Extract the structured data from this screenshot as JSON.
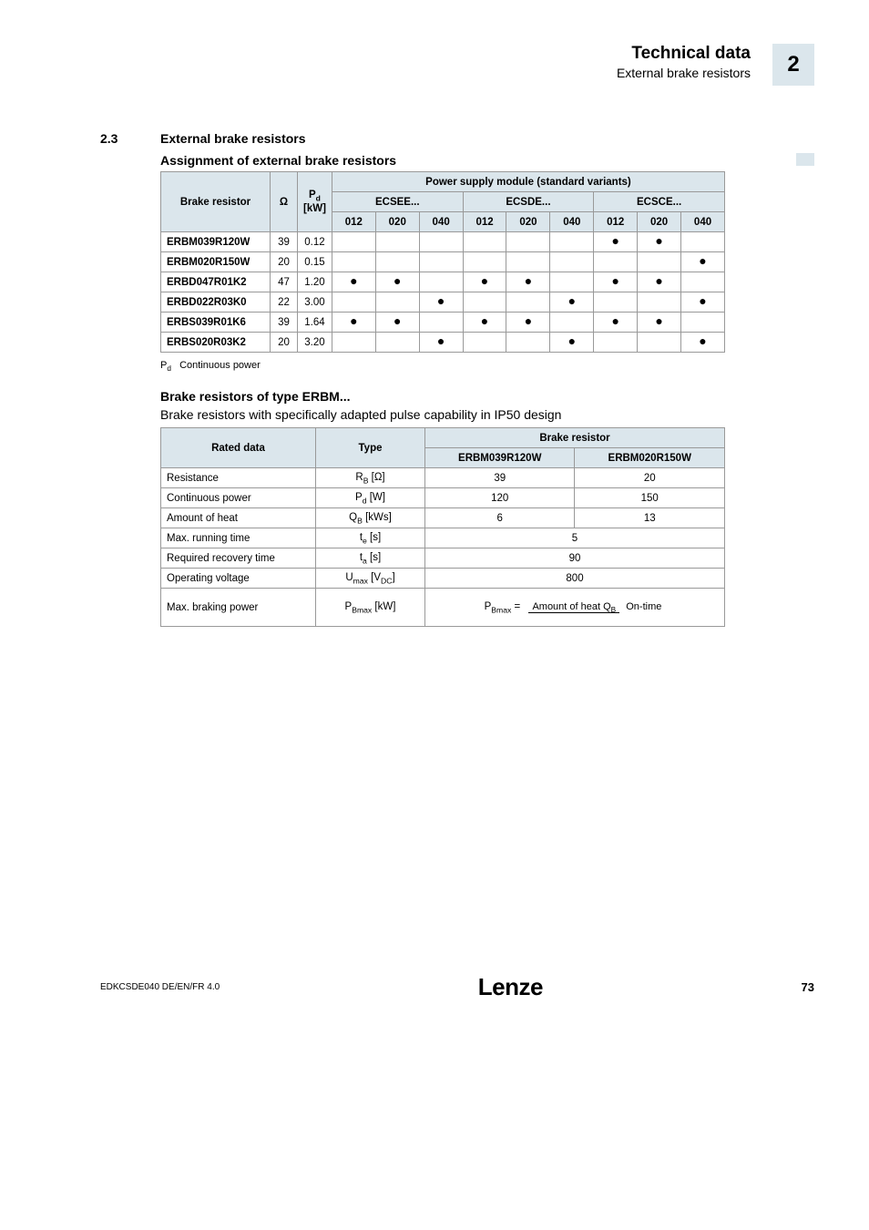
{
  "header": {
    "title": "Technical data",
    "subtitle": "External brake resistors",
    "chapter": "2"
  },
  "section": {
    "number": "2.3",
    "title": "External brake resistors"
  },
  "assignment": {
    "heading": "Assignment of external brake resistors",
    "col_brake_resistor": "Brake resistor",
    "col_ohm": "Ω",
    "col_pd": "P",
    "col_pd_sub": "d",
    "col_pd_unit": "[kW]",
    "power_header": "Power supply module (standard variants)",
    "groups": [
      "ECSEE...",
      "ECSDE...",
      "ECSCE..."
    ],
    "subcols": [
      "012",
      "020",
      "040",
      "012",
      "020",
      "040",
      "012",
      "020",
      "040"
    ],
    "rows": [
      {
        "name": "ERBM039R120W",
        "ohm": "39",
        "pd": "0.12",
        "cells": [
          "",
          "",
          "",
          "",
          "",
          "",
          "●",
          "●",
          ""
        ]
      },
      {
        "name": "ERBM020R150W",
        "ohm": "20",
        "pd": "0.15",
        "cells": [
          "",
          "",
          "",
          "",
          "",
          "",
          "",
          "",
          "●"
        ]
      },
      {
        "name": "ERBD047R01K2",
        "ohm": "47",
        "pd": "1.20",
        "cells": [
          "●",
          "●",
          "",
          "●",
          "●",
          "",
          "●",
          "●",
          ""
        ]
      },
      {
        "name": "ERBD022R03K0",
        "ohm": "22",
        "pd": "3.00",
        "cells": [
          "",
          "",
          "●",
          "",
          "",
          "●",
          "",
          "",
          "●"
        ]
      },
      {
        "name": "ERBS039R01K6",
        "ohm": "39",
        "pd": "1.64",
        "cells": [
          "●",
          "●",
          "",
          "●",
          "●",
          "",
          "●",
          "●",
          ""
        ]
      },
      {
        "name": "ERBS020R03K2",
        "ohm": "20",
        "pd": "3.20",
        "cells": [
          "",
          "",
          "●",
          "",
          "",
          "●",
          "",
          "",
          "●"
        ]
      }
    ],
    "legend_sym": "P",
    "legend_sub": "d",
    "legend_text": "Continuous power"
  },
  "erbm": {
    "heading": "Brake resistors of type ERBM...",
    "intro": "Brake resistors with specifically adapted pulse capability in IP50 design",
    "h_rated": "Rated data",
    "h_type": "Type",
    "h_brake": "Brake resistor",
    "col_a": "ERBM039R120W",
    "col_b": "ERBM020R150W",
    "rows": {
      "r1": {
        "label": "Resistance",
        "type_pre": "R",
        "type_sub": "B",
        "type_post": " [Ω]",
        "a": "39",
        "b": "20"
      },
      "r2": {
        "label": "Continuous power",
        "type_pre": "P",
        "type_sub": "d",
        "type_post": " [W]",
        "a": "120",
        "b": "150"
      },
      "r3": {
        "label": "Amount of heat",
        "type_pre": "Q",
        "type_sub": "B",
        "type_post": " [kWs]",
        "a": "6",
        "b": "13"
      },
      "r4": {
        "label": "Max. running time",
        "type_pre": "t",
        "type_sub": "e",
        "type_post": " [s]",
        "ab": "5"
      },
      "r5": {
        "label": "Required recovery time",
        "type_pre": "t",
        "type_sub": "a",
        "type_post": " [s]",
        "ab": "90"
      },
      "r6": {
        "label": "Operating voltage",
        "type_pre": "U",
        "type_sub": "max",
        "type_post": " [V",
        "type_sub2": "DC",
        "type_post2": "]",
        "ab": "800"
      },
      "r7": {
        "label": "Max. braking power",
        "type_pre": "P",
        "type_sub": "Bmax",
        "type_post": " [kW]",
        "eq_lhs_pre": "P",
        "eq_lhs_sub": "Bmax",
        "eq_num_pre": "Amount of heat Q",
        "eq_num_sub": "B",
        "eq_den": "On-time"
      }
    }
  },
  "footer": {
    "docid": "EDKCSDE040  DE/EN/FR  4.0",
    "logo": "Lenze",
    "page": "73"
  },
  "colors": {
    "accent": "#dbe6ec",
    "text": "#000000",
    "border": "#999999"
  },
  "fonts": {
    "body": 12,
    "header_title": 19,
    "header_sub": 14,
    "section": 14,
    "table": 11.5
  }
}
